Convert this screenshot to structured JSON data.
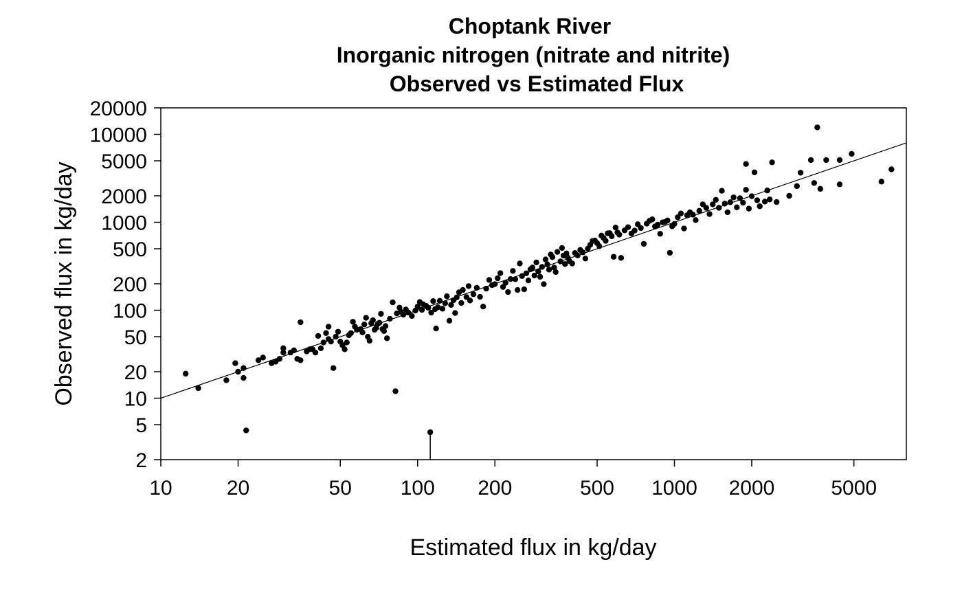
{
  "chart_data": {
    "type": "scatter",
    "title_lines": [
      "Choptank River",
      "Inorganic nitrogen (nitrate and nitrite)",
      "Observed vs Estimated Flux"
    ],
    "xlabel": "Estimated flux in kg/day",
    "ylabel": "Observed flux in kg/day",
    "x_scale": "log",
    "y_scale": "log",
    "xlim": [
      10,
      8000
    ],
    "ylim": [
      2,
      20000
    ],
    "x_ticks": [
      10,
      20,
      50,
      100,
      200,
      500,
      1000,
      2000,
      5000
    ],
    "y_ticks": [
      2,
      5,
      10,
      20,
      50,
      100,
      200,
      500,
      1000,
      2000,
      5000,
      10000,
      20000
    ],
    "grid": false,
    "reference_line": {
      "type": "1:1",
      "from": [
        10,
        10
      ],
      "to": [
        8000,
        8000
      ]
    },
    "mark_color": "#000000",
    "points": [
      [
        12.5,
        19
      ],
      [
        14,
        13
      ],
      [
        18,
        16
      ],
      [
        19.5,
        25
      ],
      [
        20,
        20
      ],
      [
        21,
        17
      ],
      [
        21,
        22
      ],
      [
        21.5,
        4.3
      ],
      [
        24,
        27
      ],
      [
        25,
        29
      ],
      [
        27,
        25
      ],
      [
        28,
        26
      ],
      [
        29,
        28
      ],
      [
        30,
        33
      ],
      [
        30,
        37
      ],
      [
        32,
        33
      ],
      [
        33,
        35
      ],
      [
        34,
        28
      ],
      [
        35,
        73
      ],
      [
        35,
        27
      ],
      [
        37,
        34
      ],
      [
        38,
        36
      ],
      [
        39,
        36
      ],
      [
        40,
        33
      ],
      [
        41,
        51
      ],
      [
        42,
        37
      ],
      [
        43,
        43
      ],
      [
        44,
        55
      ],
      [
        45,
        65
      ],
      [
        45,
        47
      ],
      [
        46,
        44
      ],
      [
        47,
        22
      ],
      [
        48,
        50
      ],
      [
        49,
        57
      ],
      [
        50,
        44
      ],
      [
        51,
        40
      ],
      [
        52,
        36
      ],
      [
        53,
        43
      ],
      [
        54,
        52
      ],
      [
        55,
        55
      ],
      [
        56,
        74
      ],
      [
        57,
        65
      ],
      [
        58,
        60
      ],
      [
        60,
        61
      ],
      [
        61,
        56
      ],
      [
        62,
        69
      ],
      [
        63,
        82
      ],
      [
        64,
        50
      ],
      [
        65,
        45
      ],
      [
        66,
        71
      ],
      [
        67,
        77
      ],
      [
        68,
        60
      ],
      [
        69,
        63
      ],
      [
        70,
        70
      ],
      [
        71,
        72
      ],
      [
        72,
        91
      ],
      [
        73,
        61
      ],
      [
        74,
        58
      ],
      [
        75,
        66
      ],
      [
        76,
        48
      ],
      [
        78,
        80
      ],
      [
        80,
        123
      ],
      [
        82,
        12
      ],
      [
        83,
        92
      ],
      [
        85,
        107
      ],
      [
        86,
        96
      ],
      [
        88,
        89
      ],
      [
        90,
        102
      ],
      [
        92,
        94
      ],
      [
        95,
        86
      ],
      [
        98,
        99
      ],
      [
        100,
        110
      ],
      [
        102,
        124
      ],
      [
        104,
        101
      ],
      [
        105,
        117
      ],
      [
        108,
        112
      ],
      [
        110,
        107
      ],
      [
        112,
        4.1
      ],
      [
        113,
        94
      ],
      [
        115,
        127
      ],
      [
        117,
        103
      ],
      [
        118,
        62
      ],
      [
        120,
        108
      ],
      [
        122,
        128
      ],
      [
        125,
        104
      ],
      [
        128,
        120
      ],
      [
        130,
        144
      ],
      [
        133,
        76
      ],
      [
        135,
        115
      ],
      [
        138,
        130
      ],
      [
        140,
        93
      ],
      [
        142,
        140
      ],
      [
        145,
        160
      ],
      [
        148,
        121
      ],
      [
        150,
        170
      ],
      [
        155,
        141
      ],
      [
        158,
        188
      ],
      [
        160,
        129
      ],
      [
        165,
        152
      ],
      [
        170,
        180
      ],
      [
        175,
        142
      ],
      [
        180,
        110
      ],
      [
        185,
        176
      ],
      [
        190,
        221
      ],
      [
        195,
        193
      ],
      [
        200,
        198
      ],
      [
        205,
        231
      ],
      [
        210,
        264
      ],
      [
        215,
        184
      ],
      [
        220,
        205
      ],
      [
        225,
        161
      ],
      [
        230,
        226
      ],
      [
        235,
        280
      ],
      [
        240,
        225
      ],
      [
        245,
        170
      ],
      [
        250,
        340
      ],
      [
        255,
        245
      ],
      [
        260,
        173
      ],
      [
        265,
        263
      ],
      [
        270,
        218
      ],
      [
        275,
        292
      ],
      [
        280,
        306
      ],
      [
        285,
        248
      ],
      [
        290,
        350
      ],
      [
        295,
        276
      ],
      [
        300,
        240
      ],
      [
        305,
        311
      ],
      [
        310,
        198
      ],
      [
        315,
        378
      ],
      [
        320,
        332
      ],
      [
        325,
        290
      ],
      [
        330,
        430
      ],
      [
        335,
        402
      ],
      [
        340,
        306
      ],
      [
        345,
        272
      ],
      [
        350,
        460
      ],
      [
        360,
        359
      ],
      [
        365,
        510
      ],
      [
        370,
        418
      ],
      [
        375,
        335
      ],
      [
        380,
        443
      ],
      [
        385,
        395
      ],
      [
        390,
        363
      ],
      [
        400,
        340
      ],
      [
        410,
        448
      ],
      [
        420,
        420
      ],
      [
        430,
        485
      ],
      [
        440,
        455
      ],
      [
        450,
        387
      ],
      [
        460,
        501
      ],
      [
        470,
        553
      ],
      [
        480,
        612
      ],
      [
        490,
        620
      ],
      [
        500,
        580
      ],
      [
        510,
        535
      ],
      [
        520,
        706
      ],
      [
        530,
        663
      ],
      [
        540,
        615
      ],
      [
        550,
        749
      ],
      [
        560,
        752
      ],
      [
        570,
        695
      ],
      [
        580,
        405
      ],
      [
        590,
        872
      ],
      [
        600,
        767
      ],
      [
        610,
        724
      ],
      [
        620,
        394
      ],
      [
        640,
        810
      ],
      [
        660,
        880
      ],
      [
        680,
        746
      ],
      [
        700,
        805
      ],
      [
        720,
        950
      ],
      [
        740,
        860
      ],
      [
        760,
        568
      ],
      [
        780,
        964
      ],
      [
        800,
        1040
      ],
      [
        820,
        1080
      ],
      [
        840,
        896
      ],
      [
        860,
        940
      ],
      [
        880,
        740
      ],
      [
        900,
        1000
      ],
      [
        920,
        1010
      ],
      [
        940,
        1050
      ],
      [
        960,
        450
      ],
      [
        980,
        900
      ],
      [
        1000,
        960
      ],
      [
        1030,
        1140
      ],
      [
        1060,
        1260
      ],
      [
        1090,
        850
      ],
      [
        1120,
        1200
      ],
      [
        1150,
        1300
      ],
      [
        1180,
        1220
      ],
      [
        1210,
        1060
      ],
      [
        1250,
        1350
      ],
      [
        1290,
        1600
      ],
      [
        1330,
        1460
      ],
      [
        1370,
        1240
      ],
      [
        1410,
        1600
      ],
      [
        1450,
        1800
      ],
      [
        1490,
        1460
      ],
      [
        1530,
        2280
      ],
      [
        1570,
        1630
      ],
      [
        1610,
        1300
      ],
      [
        1650,
        1690
      ],
      [
        1700,
        1920
      ],
      [
        1750,
        1480
      ],
      [
        1800,
        1880
      ],
      [
        1850,
        1670
      ],
      [
        1900,
        2340
      ],
      [
        1900,
        4600
      ],
      [
        1950,
        1430
      ],
      [
        2000,
        1980
      ],
      [
        2050,
        3700
      ],
      [
        2100,
        1780
      ],
      [
        2150,
        1520
      ],
      [
        2250,
        1720
      ],
      [
        2300,
        2300
      ],
      [
        2350,
        1820
      ],
      [
        2400,
        4800
      ],
      [
        2500,
        1700
      ],
      [
        2800,
        2000
      ],
      [
        3000,
        2580
      ],
      [
        3100,
        3660
      ],
      [
        3400,
        5100
      ],
      [
        3500,
        2800
      ],
      [
        3600,
        12000
      ],
      [
        3700,
        2400
      ],
      [
        3900,
        5100
      ],
      [
        4400,
        5100
      ],
      [
        4400,
        2700
      ],
      [
        4900,
        6000
      ],
      [
        6400,
        2900
      ],
      [
        7000,
        4000
      ]
    ],
    "stem_segments": [
      {
        "x": 112,
        "y_from": 2,
        "y_to": 4.1
      }
    ]
  }
}
